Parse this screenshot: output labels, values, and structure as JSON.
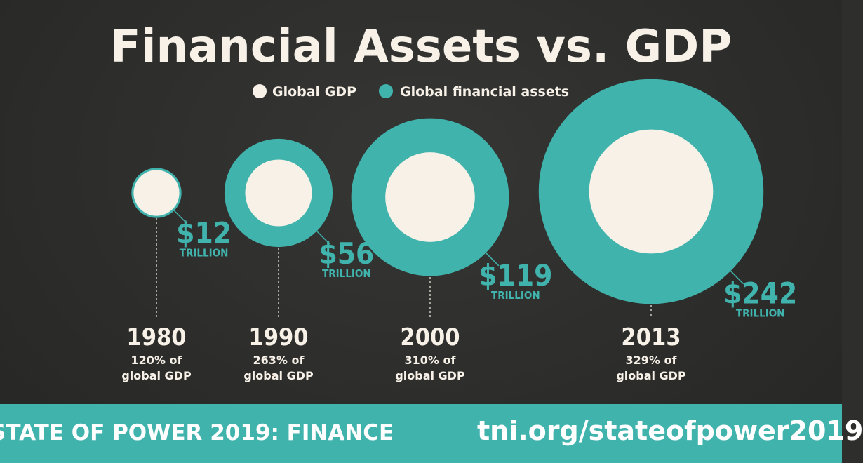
{
  "chart_data": {
    "type": "bubble",
    "title": "Financial Assets vs. GDP",
    "legend": [
      {
        "name": "Global GDP",
        "color": "#f7f1e8"
      },
      {
        "name": "Global financial assets",
        "color": "#41b3ad"
      }
    ],
    "legend_position": "top-center",
    "unit_label": "TRILLION",
    "ratio_suffix": "of",
    "ratio_line2": "global GDP",
    "grid": false,
    "points": [
      {
        "year": "1980",
        "financial_assets": 12,
        "value_label": "$12",
        "ratio_pct": 120,
        "ratio_label": "120%"
      },
      {
        "year": "1990",
        "financial_assets": 56,
        "value_label": "$56",
        "ratio_pct": 263,
        "ratio_label": "263%"
      },
      {
        "year": "2000",
        "financial_assets": 119,
        "value_label": "$119",
        "ratio_pct": 310,
        "ratio_label": "310%"
      },
      {
        "year": "2013",
        "financial_assets": 242,
        "value_label": "$242",
        "ratio_pct": 329,
        "ratio_label": "329%"
      }
    ]
  },
  "footer": {
    "left_text": "STATE OF POWER 2019: FINANCE",
    "right_text": "tni.org/stateofpower2019"
  },
  "colors": {
    "background": "#2e2e2c",
    "gdp": "#f7f1e8",
    "assets": "#41b3ad",
    "text": "#f7f1e8"
  }
}
